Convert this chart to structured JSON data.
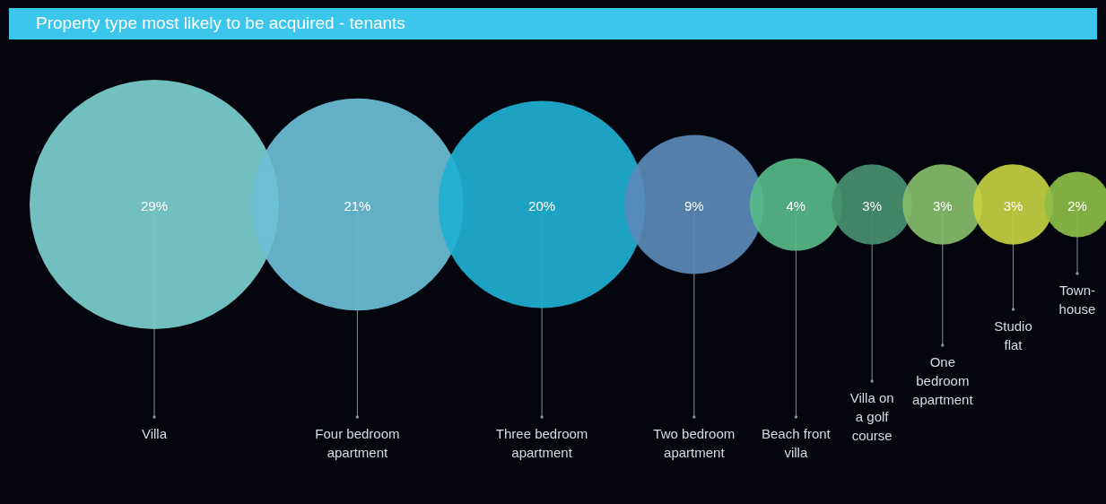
{
  "chart_data": {
    "type": "other",
    "title": "Property type most likely to be acquired - tenants",
    "categories": [
      "Villa",
      "Four bedroom apartment",
      "Three bedroom apartment",
      "Two bedroom apartment",
      "Beach front villa",
      "Villa on a golf course",
      "One bedroom apartment",
      "Studio flat",
      "Town-house"
    ],
    "values": [
      29,
      21,
      20,
      9,
      4,
      3,
      3,
      3,
      2
    ],
    "value_labels": [
      "29%",
      "21%",
      "20%",
      "9%",
      "4%",
      "3%",
      "3%",
      "3%",
      "2%"
    ],
    "colors": [
      "#7ccfcf",
      "#6bbfd6",
      "#1fb0d4",
      "#5b8ab8",
      "#56b987",
      "#468f70",
      "#86bd6a",
      "#c4d040",
      "#8cbd48"
    ]
  }
}
